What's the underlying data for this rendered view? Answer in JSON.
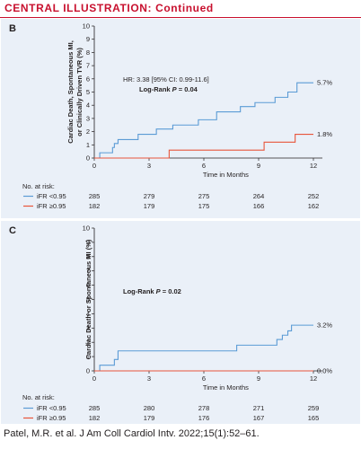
{
  "header": {
    "label": "CENTRAL ILLUSTRATION:",
    "sub": "Continued"
  },
  "footer": "Patel, M.R. et al. J Am Coll Cardiol Intv. 2022;15(1):52–61.",
  "chart_data": [
    {
      "type": "line",
      "panel": "B",
      "ylabel_lines": [
        "Cardiac Death, Spontaneous MI,",
        "or Clinically Driven TVR (%)"
      ],
      "xlabel": "Time in Months",
      "xlim": [
        0,
        12
      ],
      "ylim": [
        0,
        10
      ],
      "xticks": [
        0,
        3,
        6,
        9,
        12
      ],
      "yticks": [
        0,
        1,
        2,
        3,
        4,
        5,
        6,
        7,
        8,
        9,
        10
      ],
      "annotations": {
        "hr": "HR: 3.38 [95% CI: 0.99-11.6]",
        "logrank_prefix": "Log-Rank ",
        "logrank_p": "P",
        "logrank_value": " = 0.04"
      },
      "series": [
        {
          "name": "iFR <0.95",
          "color": "#5b9bd5",
          "end_label": "5.7%",
          "x": [
            0,
            0.3,
            0.9,
            1.0,
            1.1,
            1.3,
            1.5,
            2.4,
            3.2,
            3.4,
            4.3,
            5.7,
            6.7,
            7.8,
            8.0,
            8.8,
            9.9,
            10.4,
            10.6,
            11.1,
            12.0
          ],
          "y": [
            0,
            0.4,
            0.4,
            0.8,
            1.1,
            1.4,
            1.4,
            1.8,
            1.8,
            2.2,
            2.5,
            2.9,
            3.5,
            3.5,
            3.9,
            4.2,
            4.6,
            4.6,
            5.0,
            5.7,
            5.7
          ]
        },
        {
          "name": "iFR ≥0.95",
          "color": "#e8553b",
          "end_label": "1.8%",
          "x": [
            0,
            4.1,
            9.3,
            11.0,
            12.0
          ],
          "y": [
            0,
            0.6,
            1.2,
            1.8,
            1.8
          ]
        }
      ],
      "at_risk": {
        "title": "No. at risk:",
        "rows": [
          {
            "name": "iFR <0.95",
            "values": [
              285,
              279,
              275,
              264,
              252
            ]
          },
          {
            "name": "iFR ≥0.95",
            "values": [
              182,
              179,
              175,
              166,
              162
            ]
          }
        ]
      }
    },
    {
      "type": "line",
      "panel": "C",
      "ylabel_lines": [
        "Cardiac Death or Spontaneous MI (%)"
      ],
      "xlabel": "Time in Months",
      "xlim": [
        0,
        12
      ],
      "ylim": [
        0,
        10
      ],
      "xticks": [
        0,
        3,
        6,
        9,
        12
      ],
      "yticks": [
        0,
        1,
        2,
        3,
        4,
        5,
        6,
        7,
        8,
        9,
        10
      ],
      "annotations": {
        "hr": "",
        "logrank_prefix": "Log-Rank ",
        "logrank_p": "P",
        "logrank_value": " = 0.02"
      },
      "series": [
        {
          "name": "iFR <0.95",
          "color": "#5b9bd5",
          "end_label": "3.2%",
          "x": [
            0,
            0.3,
            0.9,
            1.1,
            1.3,
            3.3,
            7.8,
            10.0,
            10.3,
            10.6,
            10.8,
            12.0
          ],
          "y": [
            0,
            0.4,
            0.4,
            0.8,
            1.4,
            1.4,
            1.8,
            2.2,
            2.5,
            2.8,
            3.2,
            3.2
          ]
        },
        {
          "name": "iFR ≥0.95",
          "color": "#e8553b",
          "end_label": "0.0%",
          "x": [
            0,
            12.0
          ],
          "y": [
            0,
            0
          ]
        }
      ],
      "at_risk": {
        "title": "No. at risk:",
        "rows": [
          {
            "name": "iFR <0.95",
            "values": [
              285,
              280,
              278,
              271,
              259
            ]
          },
          {
            "name": "iFR ≥0.95",
            "values": [
              182,
              179,
              176,
              167,
              165
            ]
          }
        ]
      }
    }
  ]
}
